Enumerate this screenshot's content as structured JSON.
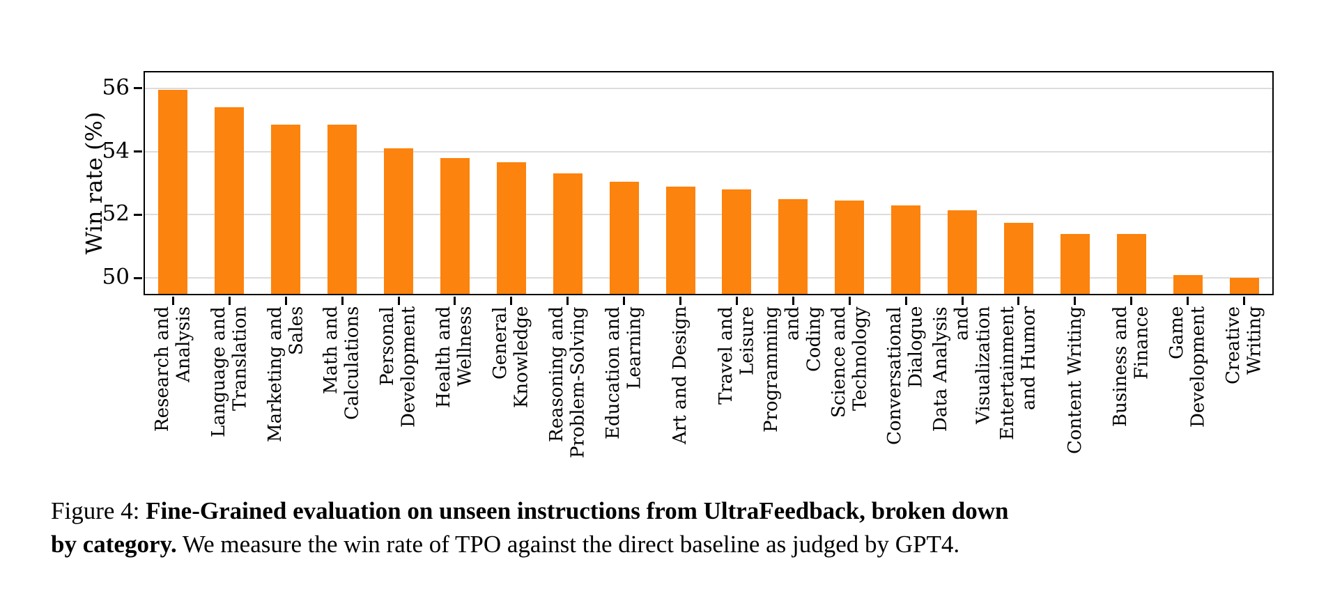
{
  "chart_data": {
    "type": "bar",
    "title": "",
    "xlabel": "",
    "ylabel": "Win rate (%)",
    "ylim": [
      49.5,
      56.5
    ],
    "yticks": [
      50,
      52,
      54,
      56
    ],
    "grid": "horizontal-only",
    "legend": "none",
    "bar_color": "#fc830d",
    "grid_color": "#dcdcdc",
    "spine_color": "#000000",
    "categories": [
      "Research and\nAnalysis",
      "Language and\nTranslation",
      "Marketing and\nSales",
      "Math and\nCalculations",
      "Personal\nDevelopment",
      "Health and\nWellness",
      "General\nKnowledge",
      "Reasoning and\nProblem-Solving",
      "Education and\nLearning",
      "Art and Design",
      "Travel and\nLeisure",
      "Programming and\nCoding",
      "Science and\nTechnology",
      "Conversational\nDialogue",
      "Data Analysis\nand\nVisualization",
      "Entertainment\nand Humor",
      "Content Writing",
      "Business and\nFinance",
      "Game\nDevelopment",
      "Creative\nWriting"
    ],
    "values": [
      55.95,
      55.4,
      54.85,
      54.85,
      54.1,
      53.8,
      53.65,
      53.3,
      53.05,
      52.9,
      52.8,
      52.5,
      52.45,
      52.3,
      52.15,
      51.75,
      51.4,
      51.4,
      50.1,
      50.0
    ]
  },
  "caption": {
    "line1_regular": "Figure 4: ",
    "line1_bold": "Fine-Grained evaluation on unseen instructions from UltraFeedback, broken down",
    "line2_bold": "by category.",
    "line2_regular": " We measure the win rate of TPO against the direct baseline as judged by GPT4."
  }
}
